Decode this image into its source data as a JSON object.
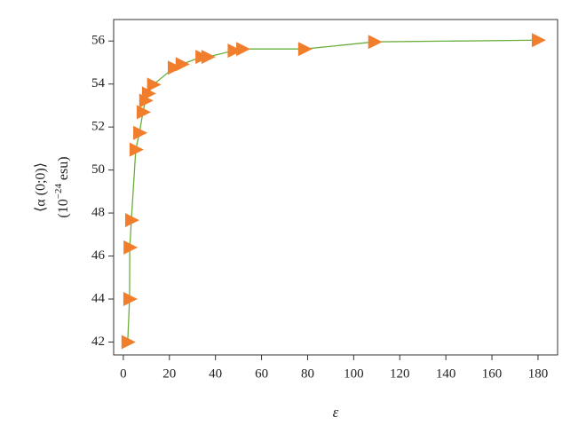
{
  "chart_data": {
    "type": "line",
    "xlabel": "ε",
    "ylabel": "⟨α (0;0)⟩",
    "yunit": {
      "base": "(10",
      "exponent": "−24",
      "rest": " esu)"
    },
    "x": [
      1.9,
      2.7,
      2.8,
      3.5,
      5.4,
      7,
      8.5,
      9.6,
      10.8,
      13,
      22,
      25.4,
      34,
      36.6,
      48,
      51.7,
      78.6,
      109,
      180
    ],
    "values": [
      42.0,
      44.0,
      46.4,
      47.67,
      50.95,
      51.73,
      52.69,
      53.23,
      53.56,
      53.97,
      54.76,
      54.92,
      55.26,
      55.26,
      55.55,
      55.63,
      55.63,
      55.96,
      56.04
    ],
    "color": "#6aaf3d",
    "marker_color": "#f07e2c",
    "xlim": [
      -4.2,
      188.5
    ],
    "xticks": [
      0,
      20,
      40,
      60,
      80,
      100,
      120,
      140,
      160,
      180
    ],
    "ylim": [
      41.4,
      57.0
    ],
    "yticks": [
      42,
      44,
      46,
      48,
      50,
      52,
      54,
      56
    ]
  }
}
